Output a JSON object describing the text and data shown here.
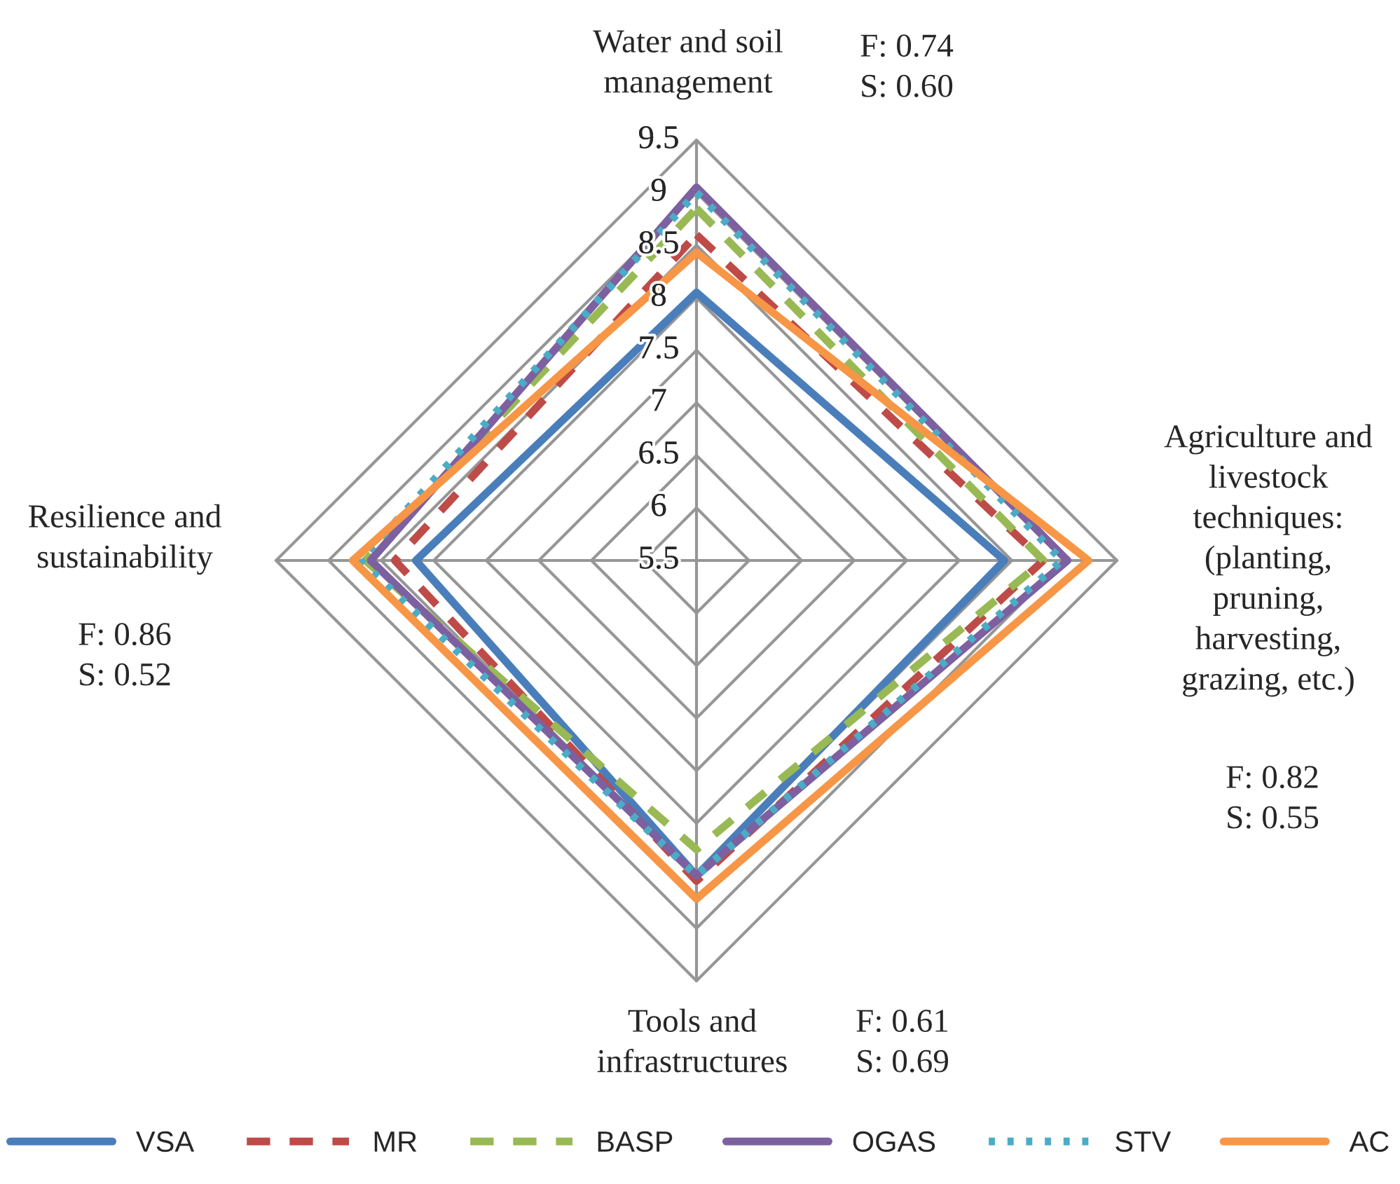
{
  "chart_data": {
    "type": "radar",
    "categories": [
      "Water and soil\nmanagement",
      "Agriculture and\nlivestock\ntechniques:\n(planting,\npruning,\nharvesting,\ngrazing, etc.)",
      "Tools and\ninfrastructures",
      "Resilience and\nsustainability"
    ],
    "series": [
      {
        "name": "VSA",
        "color": "#4a7ebb",
        "line_style": "solid",
        "values": [
          8.05,
          8.43,
          8.5,
          8.17
        ]
      },
      {
        "name": "MR",
        "color": "#be4b48",
        "line_style": "dashed",
        "values": [
          8.6,
          8.8,
          8.55,
          8.37
        ]
      },
      {
        "name": "BASP",
        "color": "#98b954",
        "line_style": "dashed",
        "values": [
          8.85,
          8.8,
          8.25,
          8.65
        ]
      },
      {
        "name": "OGAS",
        "color": "#7d60a0",
        "line_style": "solid",
        "values": [
          9.05,
          9.03,
          8.5,
          8.6
        ]
      },
      {
        "name": "STV",
        "color": "#4bacc6",
        "line_style": "dotted",
        "values": [
          9.0,
          8.98,
          8.5,
          8.7
        ]
      },
      {
        "name": "AC",
        "color": "#f79646",
        "line_style": "solid",
        "values": [
          8.43,
          9.23,
          8.72,
          8.77
        ]
      }
    ],
    "ylim": [
      5.5,
      9.5
    ],
    "yticks": [
      5.5,
      6,
      6.5,
      7,
      7.5,
      8,
      8.5,
      9,
      9.5
    ],
    "grid": true,
    "legend": "bottom",
    "annotations": [
      "F: 0.74\nS: 0.60",
      "F: 0.82\nS: 0.55",
      "F: 0.61\nS: 0.69",
      "F: 0.86\nS: 0.52"
    ]
  }
}
